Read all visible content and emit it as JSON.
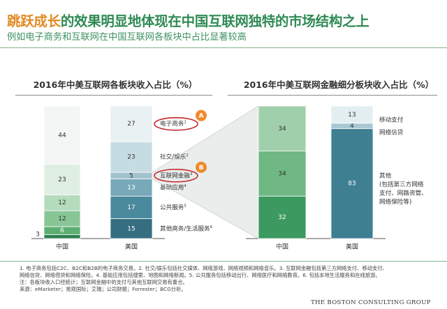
{
  "header": {
    "title_highlight": "跳跃成长",
    "title_rest": "的效果明显地体现在中国互联网独特的市场结构之上",
    "subtitle": "例如电子商务和互联网在中国互联网各板块中占比显著较高"
  },
  "colors": {
    "title_green": "#2f8a54",
    "title_orange": "#e08a22",
    "china_bars": [
      "#2e7d4f",
      "#5daf74",
      "#89c696",
      "#b5dbbd",
      "#dfeee3",
      "#f3f6f4"
    ],
    "us_bars": [
      "#356e80",
      "#4a8a9c",
      "#77a9b8",
      "#a2c3ce",
      "#c6dce3",
      "#eaf1f3"
    ],
    "circle_red": "#c62828",
    "badge_orange": "#ef8a2c"
  },
  "chart_data": [
    {
      "type": "bar",
      "stacked": true,
      "title": "2016年中美互联网各板块收入占比（%）",
      "categories": [
        "中国",
        "美国"
      ],
      "series": [
        {
          "name": "其他商务/生活服务",
          "values": [
            3,
            15
          ]
        },
        {
          "name": "公共服务",
          "values": [
            6,
            17
          ]
        },
        {
          "name": "基础应用",
          "values": [
            12,
            13
          ]
        },
        {
          "name": "互联网金融",
          "values": [
            12,
            5
          ]
        },
        {
          "name": "社交/娱乐",
          "values": [
            23,
            23
          ]
        },
        {
          "name": "电子商务",
          "values": [
            44,
            27
          ]
        }
      ],
      "series_labels": [
        "其他商务/生活服务",
        "公共服务",
        "基础应用",
        "互联网金融",
        "社交/娱乐",
        "电子商务"
      ],
      "label_superscripts": [
        "6",
        "5",
        "4",
        "3",
        "2",
        "1"
      ],
      "highlight_badges": [
        {
          "series": "电子商务",
          "badge": "A"
        },
        {
          "series": "互联网金融",
          "badge": "B"
        }
      ],
      "ylim": [
        0,
        100
      ],
      "legend_position": "right"
    },
    {
      "type": "bar",
      "stacked": true,
      "title": "2016年中美互联网金融细分板块收入占比（%）",
      "categories": [
        "中国",
        "美国"
      ],
      "series": [
        {
          "name": "其他",
          "values": [
            32,
            83
          ]
        },
        {
          "name": "网络信贷",
          "values": [
            34,
            4
          ]
        },
        {
          "name": "移动支付",
          "values": [
            34,
            13
          ]
        }
      ],
      "series_labels": [
        "其他\n(包括第三方网络\n支付、网路资管、\n网络保险等)",
        "网络信贷",
        "移动支付"
      ],
      "ylim": [
        0,
        100
      ],
      "legend_position": "right"
    }
  ],
  "footnotes": [
    "1. 电子商务包括C2C、B2C和B2B的电子商务交易。2. 社交/娱乐包括社交媒体、网络游戏、网络视频和网络音乐。3. 互联网金融包括第三方网络支付、移动支付、",
    "网络信贷、网络借贷和网络保险。4. 基础应用包括搜索、地图和网络新闻。5. 公共服务包括移动出行、网络医疗和网络教育。6. 包括本地生活服务和在线旅游。",
    "注：各板块收入口径统计；互联网金融中的支付与其他互联网交易有重合。",
    "来源：eMarketer；易观国际；艾瑞；公司财报；Forrester；BCG分析。"
  ],
  "logo": "THE BOSTON CONSULTING GROUP"
}
